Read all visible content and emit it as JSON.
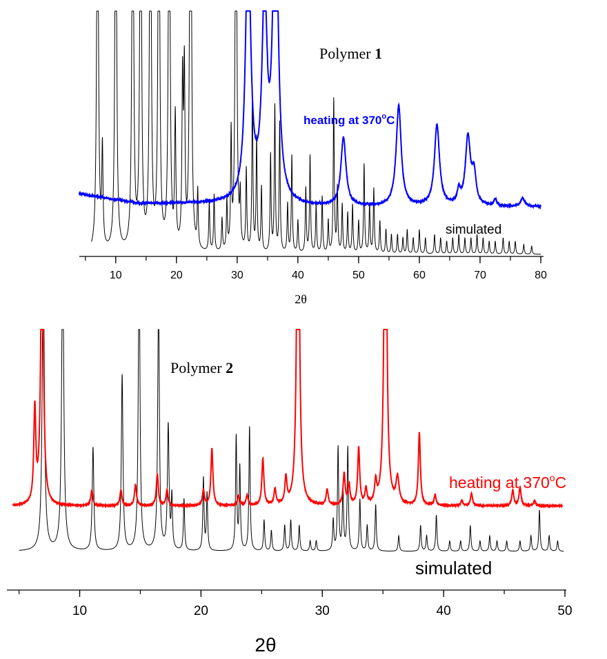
{
  "chart_data": [
    {
      "type": "line",
      "title_prefix": "Polymer ",
      "title_number": "1",
      "xlabel": "2θ",
      "xlim": [
        4,
        80
      ],
      "xticks": [
        "10",
        "20",
        "30",
        "40",
        "50",
        "60",
        "70",
        "80"
      ],
      "y_axis_shown": false,
      "series": [
        {
          "name": "heating at 370°C",
          "label_main": "heating at 370",
          "label_degree": "o",
          "label_unit": "C",
          "color": "#0000ff",
          "baseline": 0.3,
          "peaks": [
            [
              31.8,
              1.65,
              0.5
            ],
            [
              34.5,
              1.2,
              0.5
            ],
            [
              36.3,
              2.0,
              0.5
            ],
            [
              47.5,
              0.42,
              0.5
            ],
            [
              56.6,
              0.62,
              0.5
            ],
            [
              62.9,
              0.5,
              0.5
            ],
            [
              68.0,
              0.42,
              0.5
            ],
            [
              69.0,
              0.18,
              0.4
            ],
            [
              66.5,
              0.08,
              0.3
            ],
            [
              72.5,
              0.04,
              0.3
            ],
            [
              77.0,
              0.05,
              0.4
            ]
          ]
        },
        {
          "name": "simulated",
          "label_main": "simulated",
          "color": "#000000",
          "baseline": 0.0,
          "peaks": [
            [
              7.0,
              3.0,
              0.15
            ],
            [
              7.8,
              0.6,
              0.12
            ],
            [
              10.0,
              3.0,
              0.15
            ],
            [
              12.8,
              3.0,
              0.15
            ],
            [
              14.1,
              3.0,
              0.15
            ],
            [
              15.7,
              3.0,
              0.15
            ],
            [
              17.1,
              3.0,
              0.15
            ],
            [
              18.8,
              3.0,
              0.15
            ],
            [
              19.8,
              0.8,
              0.12
            ],
            [
              21.0,
              1.0,
              0.12
            ],
            [
              21.3,
              1.05,
              0.12
            ],
            [
              22.3,
              3.0,
              0.15
            ],
            [
              22.4,
              0.7,
              0.12
            ],
            [
              23.5,
              0.35,
              0.1
            ],
            [
              25.4,
              0.3,
              0.1
            ],
            [
              26.2,
              0.35,
              0.1
            ],
            [
              27.5,
              0.2,
              0.1
            ],
            [
              28.3,
              0.3,
              0.1
            ],
            [
              29.0,
              0.7,
              0.1
            ],
            [
              29.8,
              3.0,
              0.15
            ],
            [
              30.5,
              0.3,
              0.1
            ],
            [
              31.5,
              0.5,
              0.1
            ],
            [
              32.5,
              1.0,
              0.1
            ],
            [
              33.2,
              0.7,
              0.1
            ],
            [
              34.0,
              0.4,
              0.1
            ],
            [
              35.5,
              0.6,
              0.1
            ],
            [
              36.2,
              0.9,
              0.1
            ],
            [
              37.0,
              0.8,
              0.1
            ],
            [
              38.3,
              0.3,
              0.1
            ],
            [
              39.0,
              0.6,
              0.1
            ],
            [
              40.0,
              0.2,
              0.1
            ],
            [
              41.3,
              0.4,
              0.1
            ],
            [
              42.0,
              0.6,
              0.1
            ],
            [
              43.0,
              0.3,
              0.1
            ],
            [
              44.0,
              0.35,
              0.1
            ],
            [
              45.0,
              0.2,
              0.1
            ],
            [
              45.9,
              0.95,
              0.1
            ],
            [
              46.5,
              0.4,
              0.1
            ],
            [
              47.3,
              0.3,
              0.1
            ],
            [
              48.2,
              0.25,
              0.1
            ],
            [
              49.0,
              0.3,
              0.1
            ],
            [
              50.0,
              0.2,
              0.1
            ],
            [
              50.9,
              0.55,
              0.1
            ],
            [
              51.8,
              0.3,
              0.1
            ],
            [
              52.5,
              0.4,
              0.1
            ],
            [
              53.5,
              0.2,
              0.1
            ],
            [
              54.5,
              0.15,
              0.1
            ],
            [
              55.4,
              0.12,
              0.1
            ],
            [
              56.4,
              0.12,
              0.1
            ],
            [
              57.3,
              0.1,
              0.1
            ],
            [
              58.0,
              0.15,
              0.1
            ],
            [
              59.0,
              0.1,
              0.1
            ],
            [
              60.0,
              0.15,
              0.1
            ],
            [
              61.0,
              0.1,
              0.1
            ],
            [
              62.5,
              0.12,
              0.1
            ],
            [
              63.5,
              0.1,
              0.1
            ],
            [
              64.5,
              0.08,
              0.1
            ],
            [
              65.5,
              0.1,
              0.1
            ],
            [
              66.5,
              0.12,
              0.1
            ],
            [
              67.5,
              0.1,
              0.1
            ],
            [
              68.5,
              0.1,
              0.1
            ],
            [
              69.5,
              0.12,
              0.1
            ],
            [
              70.5,
              0.1,
              0.1
            ],
            [
              71.5,
              0.08,
              0.1
            ],
            [
              72.5,
              0.08,
              0.1
            ],
            [
              73.8,
              0.1,
              0.1
            ],
            [
              74.8,
              0.08,
              0.1
            ],
            [
              75.8,
              0.08,
              0.1
            ],
            [
              77.2,
              0.06,
              0.1
            ],
            [
              78.5,
              0.05,
              0.1
            ]
          ]
        }
      ]
    },
    {
      "type": "line",
      "title_prefix": "Polymer ",
      "title_number": "2",
      "xlabel": "2θ",
      "xlim": [
        4,
        50
      ],
      "xticks": [
        "10",
        "20",
        "30",
        "40",
        "50"
      ],
      "y_axis_shown": false,
      "series": [
        {
          "name": "heating at 370°C",
          "label_main": "heating at 370",
          "label_degree": "o",
          "label_unit": "C",
          "color": "#ff0000",
          "baseline": 0.8,
          "peaks": [
            [
              6.3,
              0.9,
              0.1
            ],
            [
              6.9,
              3.0,
              0.12
            ],
            [
              11.0,
              0.15,
              0.1
            ],
            [
              13.4,
              0.15,
              0.1
            ],
            [
              14.6,
              0.2,
              0.1
            ],
            [
              16.4,
              0.3,
              0.1
            ],
            [
              17.2,
              0.15,
              0.1
            ],
            [
              20.2,
              0.15,
              0.1
            ],
            [
              20.9,
              0.55,
              0.1
            ],
            [
              23.1,
              0.1,
              0.1
            ],
            [
              23.8,
              0.1,
              0.1
            ],
            [
              25.1,
              0.45,
              0.1
            ],
            [
              26.1,
              0.15,
              0.1
            ],
            [
              27.0,
              0.25,
              0.1
            ],
            [
              28.0,
              4.0,
              0.12
            ],
            [
              30.4,
              0.15,
              0.1
            ],
            [
              31.8,
              0.3,
              0.1
            ],
            [
              32.2,
              0.2,
              0.1
            ],
            [
              33.0,
              0.55,
              0.1
            ],
            [
              33.6,
              0.15,
              0.1
            ],
            [
              34.4,
              0.2,
              0.1
            ],
            [
              35.2,
              4.0,
              0.12
            ],
            [
              36.2,
              0.25,
              0.15
            ],
            [
              38.0,
              0.7,
              0.1
            ],
            [
              39.3,
              0.1,
              0.1
            ],
            [
              41.5,
              0.05,
              0.1
            ],
            [
              42.3,
              0.12,
              0.1
            ],
            [
              45.7,
              0.15,
              0.1
            ],
            [
              46.3,
              0.18,
              0.1
            ],
            [
              47.5,
              0.05,
              0.1
            ]
          ]
        },
        {
          "name": "simulated",
          "label_main": "simulated",
          "color": "#000000",
          "baseline": 0.0,
          "peaks": [
            [
              7.0,
              3.0,
              0.1
            ],
            [
              8.6,
              3.0,
              0.1
            ],
            [
              11.1,
              1.0,
              0.08
            ],
            [
              13.5,
              1.7,
              0.08
            ],
            [
              14.9,
              3.0,
              0.08
            ],
            [
              16.5,
              2.5,
              0.08
            ],
            [
              17.3,
              1.2,
              0.08
            ],
            [
              17.6,
              0.5,
              0.06
            ],
            [
              18.6,
              0.5,
              0.06
            ],
            [
              20.2,
              0.7,
              0.06
            ],
            [
              20.5,
              0.55,
              0.06
            ],
            [
              22.9,
              1.1,
              0.06
            ],
            [
              23.2,
              0.8,
              0.06
            ],
            [
              24.0,
              1.2,
              0.06
            ],
            [
              25.2,
              0.3,
              0.06
            ],
            [
              25.8,
              0.2,
              0.06
            ],
            [
              26.9,
              0.25,
              0.06
            ],
            [
              27.4,
              0.3,
              0.06
            ],
            [
              28.1,
              0.25,
              0.06
            ],
            [
              29.0,
              0.1,
              0.06
            ],
            [
              29.5,
              0.1,
              0.06
            ],
            [
              30.9,
              0.3,
              0.06
            ],
            [
              31.3,
              1.0,
              0.06
            ],
            [
              31.7,
              0.6,
              0.06
            ],
            [
              32.1,
              1.0,
              0.06
            ],
            [
              33.1,
              0.5,
              0.06
            ],
            [
              33.7,
              0.25,
              0.06
            ],
            [
              34.4,
              0.45,
              0.06
            ],
            [
              36.3,
              0.15,
              0.06
            ],
            [
              38.1,
              0.25,
              0.06
            ],
            [
              38.6,
              0.15,
              0.06
            ],
            [
              39.4,
              0.35,
              0.06
            ],
            [
              40.5,
              0.1,
              0.06
            ],
            [
              41.4,
              0.1,
              0.06
            ],
            [
              42.2,
              0.25,
              0.06
            ],
            [
              43.0,
              0.1,
              0.06
            ],
            [
              43.8,
              0.15,
              0.06
            ],
            [
              44.4,
              0.1,
              0.06
            ],
            [
              45.2,
              0.1,
              0.06
            ],
            [
              46.3,
              0.1,
              0.06
            ],
            [
              47.2,
              0.15,
              0.06
            ],
            [
              47.9,
              0.4,
              0.06
            ],
            [
              48.7,
              0.15,
              0.06
            ],
            [
              49.4,
              0.1,
              0.06
            ]
          ]
        }
      ]
    }
  ]
}
